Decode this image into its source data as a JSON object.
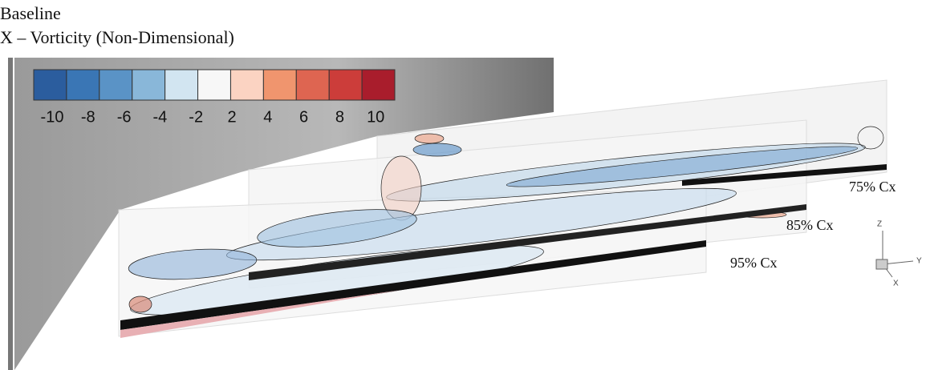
{
  "header": {
    "title": "Baseline",
    "subtitle": "X – Vorticity (Non-Dimensional)"
  },
  "colorbar": {
    "colors": [
      "#2b5d9e",
      "#3a76b5",
      "#5a93c6",
      "#89b7d9",
      "#d2e5f1",
      "#f7f7f7",
      "#fbd3c2",
      "#f0956e",
      "#de6551",
      "#cc3d3a",
      "#a91d2c"
    ],
    "ticks": [
      -10,
      -8,
      -6,
      -4,
      -2,
      2,
      4,
      6,
      8,
      10
    ]
  },
  "planes": [
    {
      "label": "75% Cx"
    },
    {
      "label": "85% Cx"
    },
    {
      "label": "95% Cx"
    }
  ],
  "triad": {
    "z": "Z",
    "y": "Y",
    "x": "X"
  }
}
